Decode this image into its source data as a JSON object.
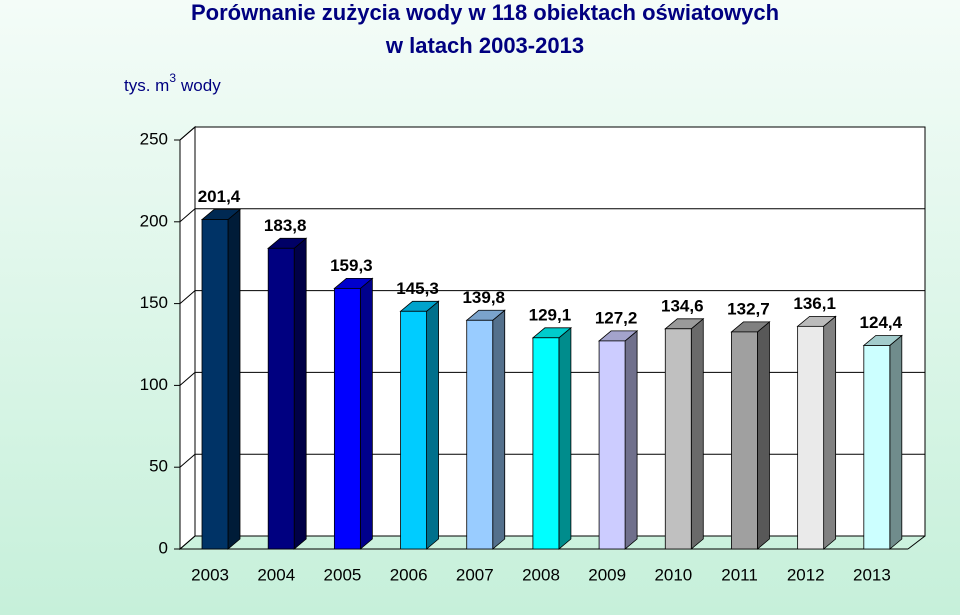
{
  "chart_data": {
    "type": "bar3d",
    "title": [
      "Porównanie zużycia wody w 118 obiektach oświatowych",
      "w latach 2003-2013"
    ],
    "y_label": {
      "text": "tys. m",
      "sup": "3",
      "suffix": "wody"
    },
    "categories": [
      "2003",
      "2004",
      "2005",
      "2006",
      "2007",
      "2008",
      "2009",
      "2010",
      "2011",
      "2012",
      "2013"
    ],
    "values": [
      201.4,
      183.8,
      159.3,
      145.3,
      139.8,
      129.1,
      127.2,
      134.6,
      132.7,
      136.1,
      124.4
    ],
    "value_labels": [
      "201,4",
      "183,8",
      "159,3",
      "145,3",
      "139,8",
      "129,1",
      "127,2",
      "134,6",
      "132,7",
      "136,1",
      "124,4"
    ],
    "colors": [
      "#003366",
      "#000080",
      "#0000ff",
      "#00ccff",
      "#99ccff",
      "#00ffff",
      "#ccccff",
      "#c0c0c0",
      "#a0a0a0",
      "#eaeaea",
      "#ccffff"
    ],
    "ylim": [
      0,
      250
    ],
    "yticks": [
      0,
      50,
      100,
      150,
      200,
      250
    ],
    "grid": true
  }
}
